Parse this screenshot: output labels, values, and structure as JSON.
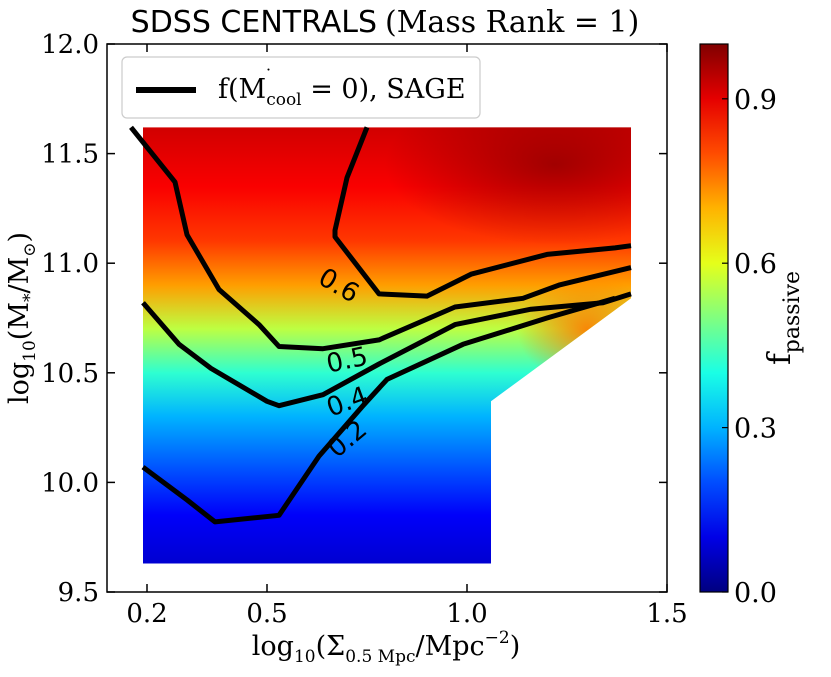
{
  "chart_data": {
    "type": "heatmap",
    "title": {
      "main": "SDSS CENTRALS",
      "paren_open": "(",
      "sub": "Mass Rank = 1",
      "paren_close": ")"
    },
    "xlabel": {
      "pre": "log",
      "base": "10",
      "mid": "(Σ",
      "sub": "0.5 Mpc",
      "post": "/Mpc",
      "exp": "−2",
      "close": ")"
    },
    "ylabel": {
      "pre": "log",
      "base": "10",
      "mid": "(M",
      "sub1": "*",
      "slash": "/M",
      "sub2": "⊙",
      "close": ")"
    },
    "xlim": [
      0.1,
      1.5
    ],
    "ylim": [
      9.5,
      12.0
    ],
    "xticks": [
      "0.2",
      "0.5",
      "1.0",
      "1.5"
    ],
    "xtick_values": [
      0.2,
      0.5,
      1.0,
      1.5
    ],
    "yticks": [
      "9.5",
      "10.0",
      "10.5",
      "11.0",
      "11.5",
      "12.0"
    ],
    "ytick_values": [
      9.5,
      10.0,
      10.5,
      11.0,
      11.5,
      12.0
    ],
    "legend": {
      "position": "top-left",
      "label_pre": "f(",
      "label_m": "M",
      "label_sub": "cool",
      "label_post": " = 0),  SAGE"
    },
    "colorbar": {
      "label_main": "f",
      "label_sub": "passive",
      "range": [
        0.0,
        1.0
      ],
      "ticks": [
        "0.0",
        "0.3",
        "0.6",
        "0.9"
      ],
      "tick_values": [
        0.0,
        0.3,
        0.6,
        0.9
      ],
      "colormap": "jet"
    },
    "heatmap_region": {
      "x_min": 0.19,
      "x_max": 1.41,
      "y_min": 9.63,
      "y_max": 11.62,
      "x_cut": 1.06,
      "y_cut_low": 10.37,
      "y_cut_high": 10.84
    },
    "color_profile": [
      {
        "y": 9.63,
        "f": 0.08
      },
      {
        "y": 9.85,
        "f": 0.12
      },
      {
        "y": 10.05,
        "f": 0.2
      },
      {
        "y": 10.3,
        "f": 0.3
      },
      {
        "y": 10.5,
        "f": 0.42
      },
      {
        "y": 10.7,
        "f": 0.56
      },
      {
        "y": 10.9,
        "f": 0.72
      },
      {
        "y": 11.1,
        "f": 0.82
      },
      {
        "y": 11.35,
        "f": 0.88
      },
      {
        "y": 11.62,
        "f": 0.92
      }
    ],
    "contours": [
      {
        "level": "0.2",
        "label": "0.2",
        "label_at": [
          0.7,
          10.2
        ],
        "label_rotation": -40,
        "points": [
          [
            0.19,
            10.07
          ],
          [
            0.3,
            9.92
          ],
          [
            0.37,
            9.82
          ],
          [
            0.53,
            9.85
          ],
          [
            0.63,
            10.12
          ],
          [
            0.74,
            10.35
          ],
          [
            0.8,
            10.47
          ],
          [
            0.99,
            10.63
          ],
          [
            1.2,
            10.75
          ],
          [
            1.37,
            10.84
          ]
        ]
      },
      {
        "level": "0.4",
        "label": "0.4",
        "label_at": [
          0.7,
          10.37
        ],
        "label_rotation": -20,
        "points": [
          [
            0.19,
            10.82
          ],
          [
            0.28,
            10.63
          ],
          [
            0.36,
            10.52
          ],
          [
            0.5,
            10.37
          ],
          [
            0.53,
            10.35
          ],
          [
            0.64,
            10.4
          ],
          [
            0.78,
            10.54
          ],
          [
            0.97,
            10.72
          ],
          [
            1.16,
            10.79
          ],
          [
            1.34,
            10.82
          ],
          [
            1.41,
            10.86
          ]
        ]
      },
      {
        "level": "0.5",
        "label": "0.5",
        "label_at": [
          0.7,
          10.56
        ],
        "label_rotation": -12,
        "points": [
          [
            0.16,
            11.62
          ],
          [
            0.27,
            11.37
          ],
          [
            0.3,
            11.13
          ],
          [
            0.38,
            10.88
          ],
          [
            0.48,
            10.72
          ],
          [
            0.53,
            10.62
          ],
          [
            0.64,
            10.61
          ],
          [
            0.78,
            10.65
          ],
          [
            0.97,
            10.8
          ],
          [
            1.14,
            10.84
          ],
          [
            1.23,
            10.9
          ],
          [
            1.41,
            10.98
          ]
        ]
      },
      {
        "level": "0.6",
        "label": "0.6",
        "label_at": [
          0.68,
          10.9
        ],
        "label_rotation": 30,
        "points": [
          [
            0.75,
            11.62
          ],
          [
            0.7,
            11.39
          ],
          [
            0.67,
            11.15
          ],
          [
            0.67,
            11.12
          ],
          [
            0.78,
            10.86
          ],
          [
            0.9,
            10.85
          ],
          [
            1.01,
            10.95
          ],
          [
            1.2,
            11.04
          ],
          [
            1.37,
            11.07
          ],
          [
            1.41,
            11.08
          ]
        ]
      }
    ]
  }
}
